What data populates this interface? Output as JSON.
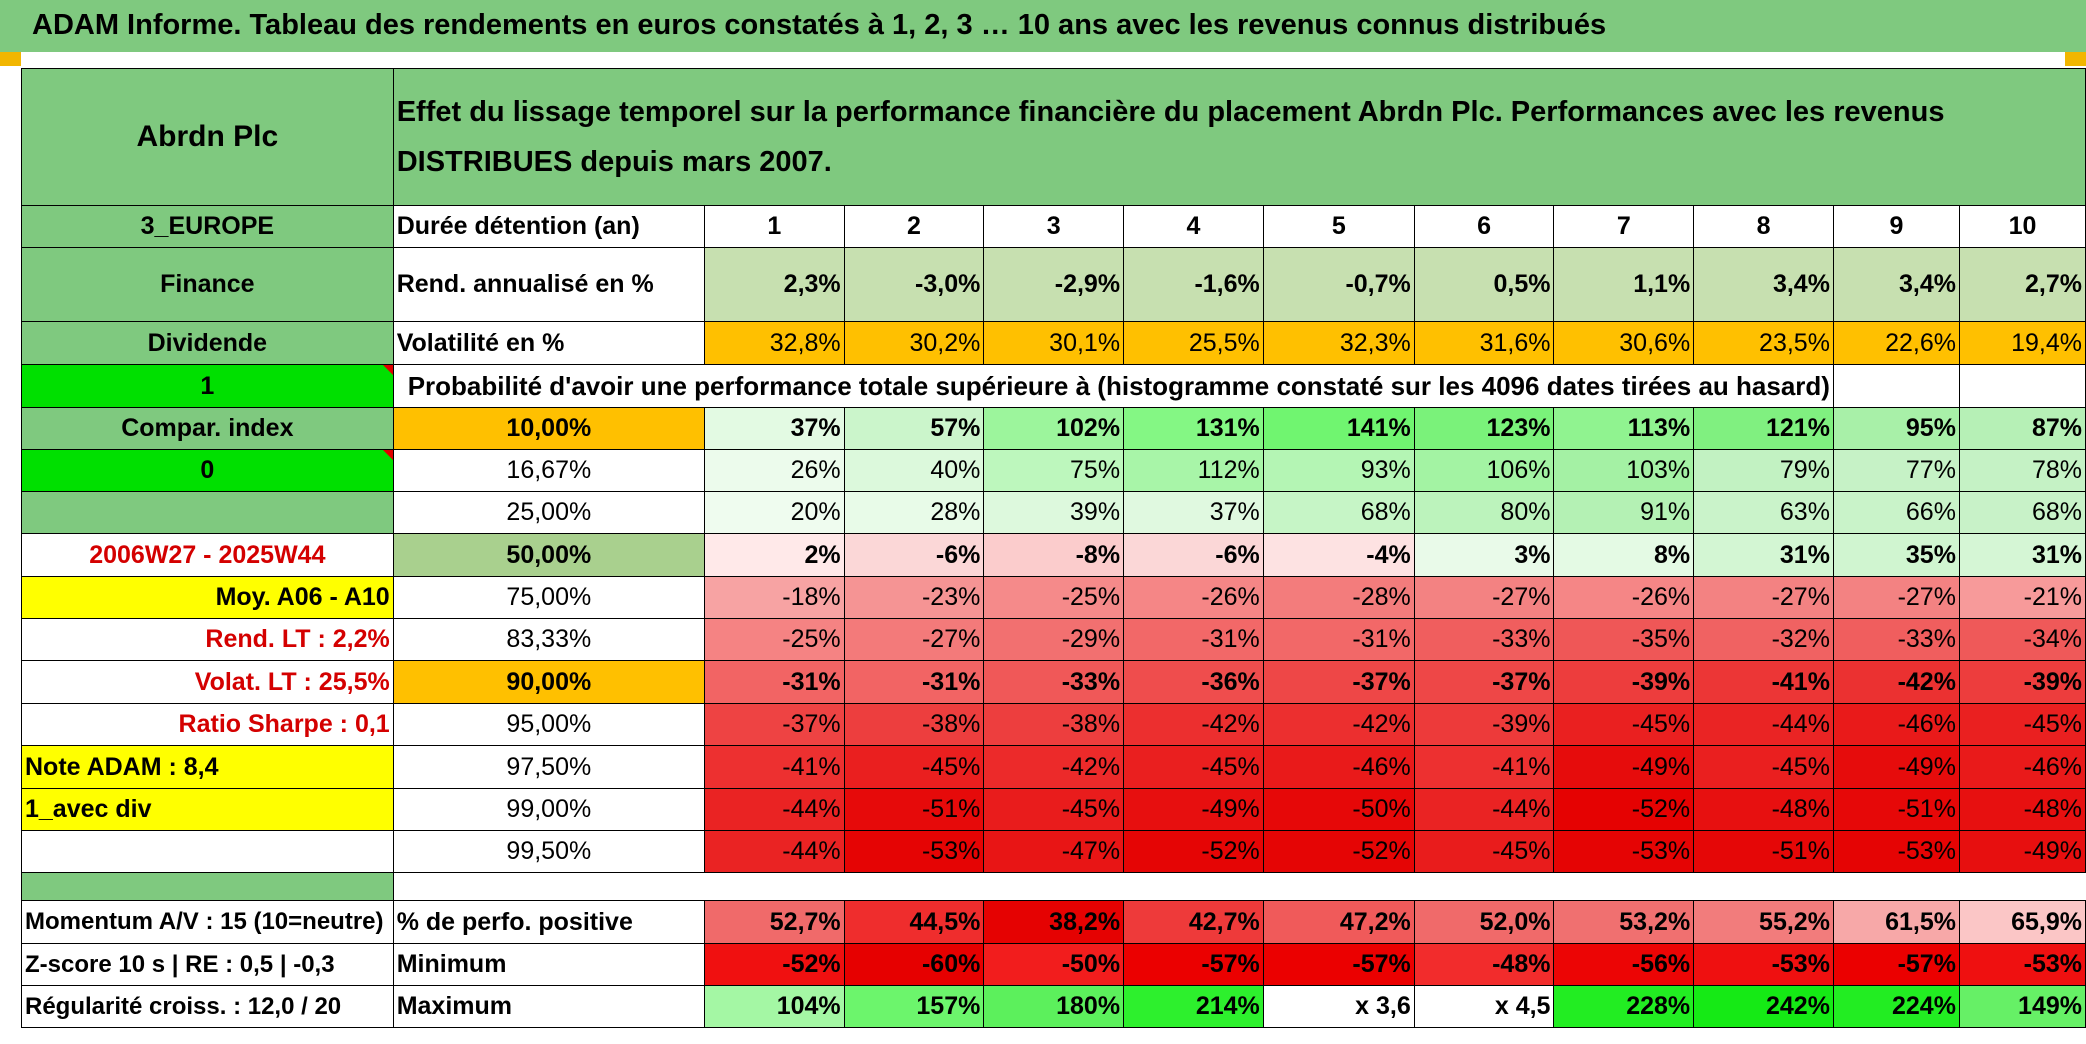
{
  "header": {
    "title": "ADAM Informe. Tableau des rendements en euros constatés à 1, 2, 3 … 10 ans avec les revenus connus distribués"
  },
  "info": {
    "fund_name": "Abrdn Plc",
    "description": "Effet du lissage temporel sur la performance financière du placement Abrdn Plc. Performances avec les revenus DISTRIBUES depuis mars 2007.",
    "region": "3_EUROPE",
    "sector": "Finance",
    "income_type": "Dividende",
    "flag_1": "1",
    "compar_index": "Compar. index",
    "flag_0": "0",
    "period": "2006W27 - 2025W44",
    "moy": "Moy. A06 - A10",
    "rend_lt": "Rend. LT :    2,2%",
    "volat_lt": "Volat. LT :    25,5%",
    "sharpe": "Ratio Sharpe :    0,1",
    "note": "Note ADAM : 8,4",
    "div_mode": "1_avec div",
    "momentum": "Momentum A/V : 15 (10=neutre)",
    "zscore": "Z-score 10 s | RE : 0,5 | -0,3",
    "regularite": "Régularité croiss. : 12,0 / 20"
  },
  "labels": {
    "duree": "Durée détention (an)",
    "rend": "Rend. annualisé en %",
    "vol": "Volatilité en %",
    "prob": "Probabilité d'avoir une performance totale supérieure à (histogramme constaté sur les 4096 dates tirées au hasard)",
    "pos": "% de perfo. positive",
    "min": "Minimum",
    "max": "Maximum"
  },
  "years": [
    "1",
    "2",
    "3",
    "4",
    "5",
    "6",
    "7",
    "8",
    "9",
    "10"
  ],
  "rend": [
    "2,3%",
    "-3,0%",
    "-2,9%",
    "-1,6%",
    "-0,7%",
    "0,5%",
    "1,1%",
    "3,4%",
    "3,4%",
    "2,7%"
  ],
  "vol": [
    "32,8%",
    "30,2%",
    "30,1%",
    "25,5%",
    "32,3%",
    "31,6%",
    "30,6%",
    "23,5%",
    "22,6%",
    "19,4%"
  ],
  "prob_rows": [
    {
      "p": "10,00%",
      "v": [
        "37%",
        "57%",
        "102%",
        "131%",
        "141%",
        "123%",
        "113%",
        "121%",
        "95%",
        "87%"
      ]
    },
    {
      "p": "16,67%",
      "v": [
        "26%",
        "40%",
        "75%",
        "112%",
        "93%",
        "106%",
        "103%",
        "79%",
        "77%",
        "78%"
      ]
    },
    {
      "p": "25,00%",
      "v": [
        "20%",
        "28%",
        "39%",
        "37%",
        "68%",
        "80%",
        "91%",
        "63%",
        "66%",
        "68%"
      ]
    },
    {
      "p": "50,00%",
      "v": [
        "2%",
        "-6%",
        "-8%",
        "-6%",
        "-4%",
        "3%",
        "8%",
        "31%",
        "35%",
        "31%"
      ]
    },
    {
      "p": "75,00%",
      "v": [
        "-18%",
        "-23%",
        "-25%",
        "-26%",
        "-28%",
        "-27%",
        "-26%",
        "-27%",
        "-27%",
        "-21%"
      ]
    },
    {
      "p": "83,33%",
      "v": [
        "-25%",
        "-27%",
        "-29%",
        "-31%",
        "-31%",
        "-33%",
        "-35%",
        "-32%",
        "-33%",
        "-34%"
      ]
    },
    {
      "p": "90,00%",
      "v": [
        "-31%",
        "-31%",
        "-33%",
        "-36%",
        "-37%",
        "-37%",
        "-39%",
        "-41%",
        "-42%",
        "-39%"
      ]
    },
    {
      "p": "95,00%",
      "v": [
        "-37%",
        "-38%",
        "-38%",
        "-42%",
        "-42%",
        "-39%",
        "-45%",
        "-44%",
        "-46%",
        "-45%"
      ]
    },
    {
      "p": "97,50%",
      "v": [
        "-41%",
        "-45%",
        "-42%",
        "-45%",
        "-46%",
        "-41%",
        "-49%",
        "-45%",
        "-49%",
        "-46%"
      ]
    },
    {
      "p": "99,00%",
      "v": [
        "-44%",
        "-51%",
        "-45%",
        "-49%",
        "-50%",
        "-44%",
        "-52%",
        "-48%",
        "-51%",
        "-48%"
      ]
    },
    {
      "p": "99,50%",
      "v": [
        "-44%",
        "-53%",
        "-47%",
        "-52%",
        "-52%",
        "-45%",
        "-53%",
        "-51%",
        "-53%",
        "-49%"
      ]
    }
  ],
  "pos": [
    "52,7%",
    "44,5%",
    "38,2%",
    "42,7%",
    "47,2%",
    "52,0%",
    "53,2%",
    "55,2%",
    "61,5%",
    "65,9%"
  ],
  "min": [
    "-52%",
    "-60%",
    "-50%",
    "-57%",
    "-57%",
    "-48%",
    "-56%",
    "-53%",
    "-57%",
    "-53%"
  ],
  "max": [
    "104%",
    "157%",
    "180%",
    "214%",
    "x 3,6",
    "x 4,5",
    "228%",
    "242%",
    "224%",
    "149%"
  ],
  "colors": {
    "header_green": "#7fc97f",
    "lime": "#00e000",
    "yellow": "#ffff00",
    "orange": "#ffc000",
    "rend_bg": "#c7e0b0",
    "red_label": "#d40000",
    "prob_bg": [
      [
        "#e3fae3",
        "#cbf5cb",
        "#9cf59c",
        "#84f784",
        "#70f570",
        "#7af27a",
        "#90f390",
        "#80f080",
        "#a8f0a8",
        "#b6f0b6"
      ],
      [
        "#ecfbec",
        "#dcf9dc",
        "#bdf7bd",
        "#a8f5a8",
        "#b4f5b4",
        "#a3f3a3",
        "#a4f1a4",
        "#c2f2c2",
        "#c6f2c6",
        "#c5f2c5"
      ],
      [
        "#effcef",
        "#e8fbe8",
        "#ddf9dd",
        "#e0f9e0",
        "#c6f5c6",
        "#bcf3bc",
        "#b4f1b4",
        "#caf3ca",
        "#c9f3c9",
        "#c8f2c8"
      ],
      [
        "#ffe9e9",
        "#fbd7d7",
        "#fbcccc",
        "#fbd7d7",
        "#fde2e2",
        "#e9fae9",
        "#e4fae4",
        "#d3f6d3",
        "#d0f5d0",
        "#d5f6d5"
      ],
      [
        "#f7a3a3",
        "#f59494",
        "#f58a8a",
        "#f58686",
        "#f37c7c",
        "#f38282",
        "#f58686",
        "#f38282",
        "#f38282",
        "#f79a9a"
      ],
      [
        "#f58383",
        "#f37a7a",
        "#f27070",
        "#f26868",
        "#f26868",
        "#f05e5e",
        "#ef5757",
        "#f06262",
        "#f05e5e",
        "#ef5959"
      ],
      [
        "#f26464",
        "#f26464",
        "#f05858",
        "#ef4d4d",
        "#ee4747",
        "#ee4747",
        "#ed3d3d",
        "#ec3636",
        "#eb3131",
        "#ed3d3d"
      ],
      [
        "#ee4343",
        "#ed3e3e",
        "#ed3e3e",
        "#ec2f2f",
        "#ec2f2f",
        "#ed3a3a",
        "#ea2020",
        "#ea2424",
        "#e91a1a",
        "#ea2020"
      ],
      [
        "#ed3030",
        "#ea1f1f",
        "#ec2a2a",
        "#ea1f1f",
        "#e91a1a",
        "#ed3030",
        "#e60c0c",
        "#ea1f1f",
        "#e60c0c",
        "#e91a1a"
      ],
      [
        "#ea2323",
        "#e60a0a",
        "#e91c1c",
        "#e70f0f",
        "#e60808",
        "#ea2323",
        "#e50202",
        "#e71010",
        "#e60808",
        "#e71010"
      ],
      [
        "#ea2323",
        "#e50404",
        "#e81515",
        "#e50505",
        "#e50505",
        "#e91c1c",
        "#e50404",
        "#e50707",
        "#e50404",
        "#e70f0f"
      ]
    ],
    "pos_bg": [
      "#f06a6a",
      "#ef2d2d",
      "#e50202",
      "#ee3a3a",
      "#f05a5a",
      "#f06a6a",
      "#f07070",
      "#f27c7c",
      "#f7a8a8",
      "#fbc6c6"
    ],
    "min_bg": [
      "#f01010",
      "#e60000",
      "#f21d1d",
      "#eb0000",
      "#eb0000",
      "#f22c2c",
      "#ec0505",
      "#ef1010",
      "#eb0000",
      "#ef1010"
    ],
    "max_bg": [
      "#a4f7a4",
      "#6cf56c",
      "#5cf05c",
      "#2df02d",
      "#ffffff",
      "#ffffff",
      "#22ed22",
      "#15ea15",
      "#22ed22",
      "#66f066"
    ]
  }
}
